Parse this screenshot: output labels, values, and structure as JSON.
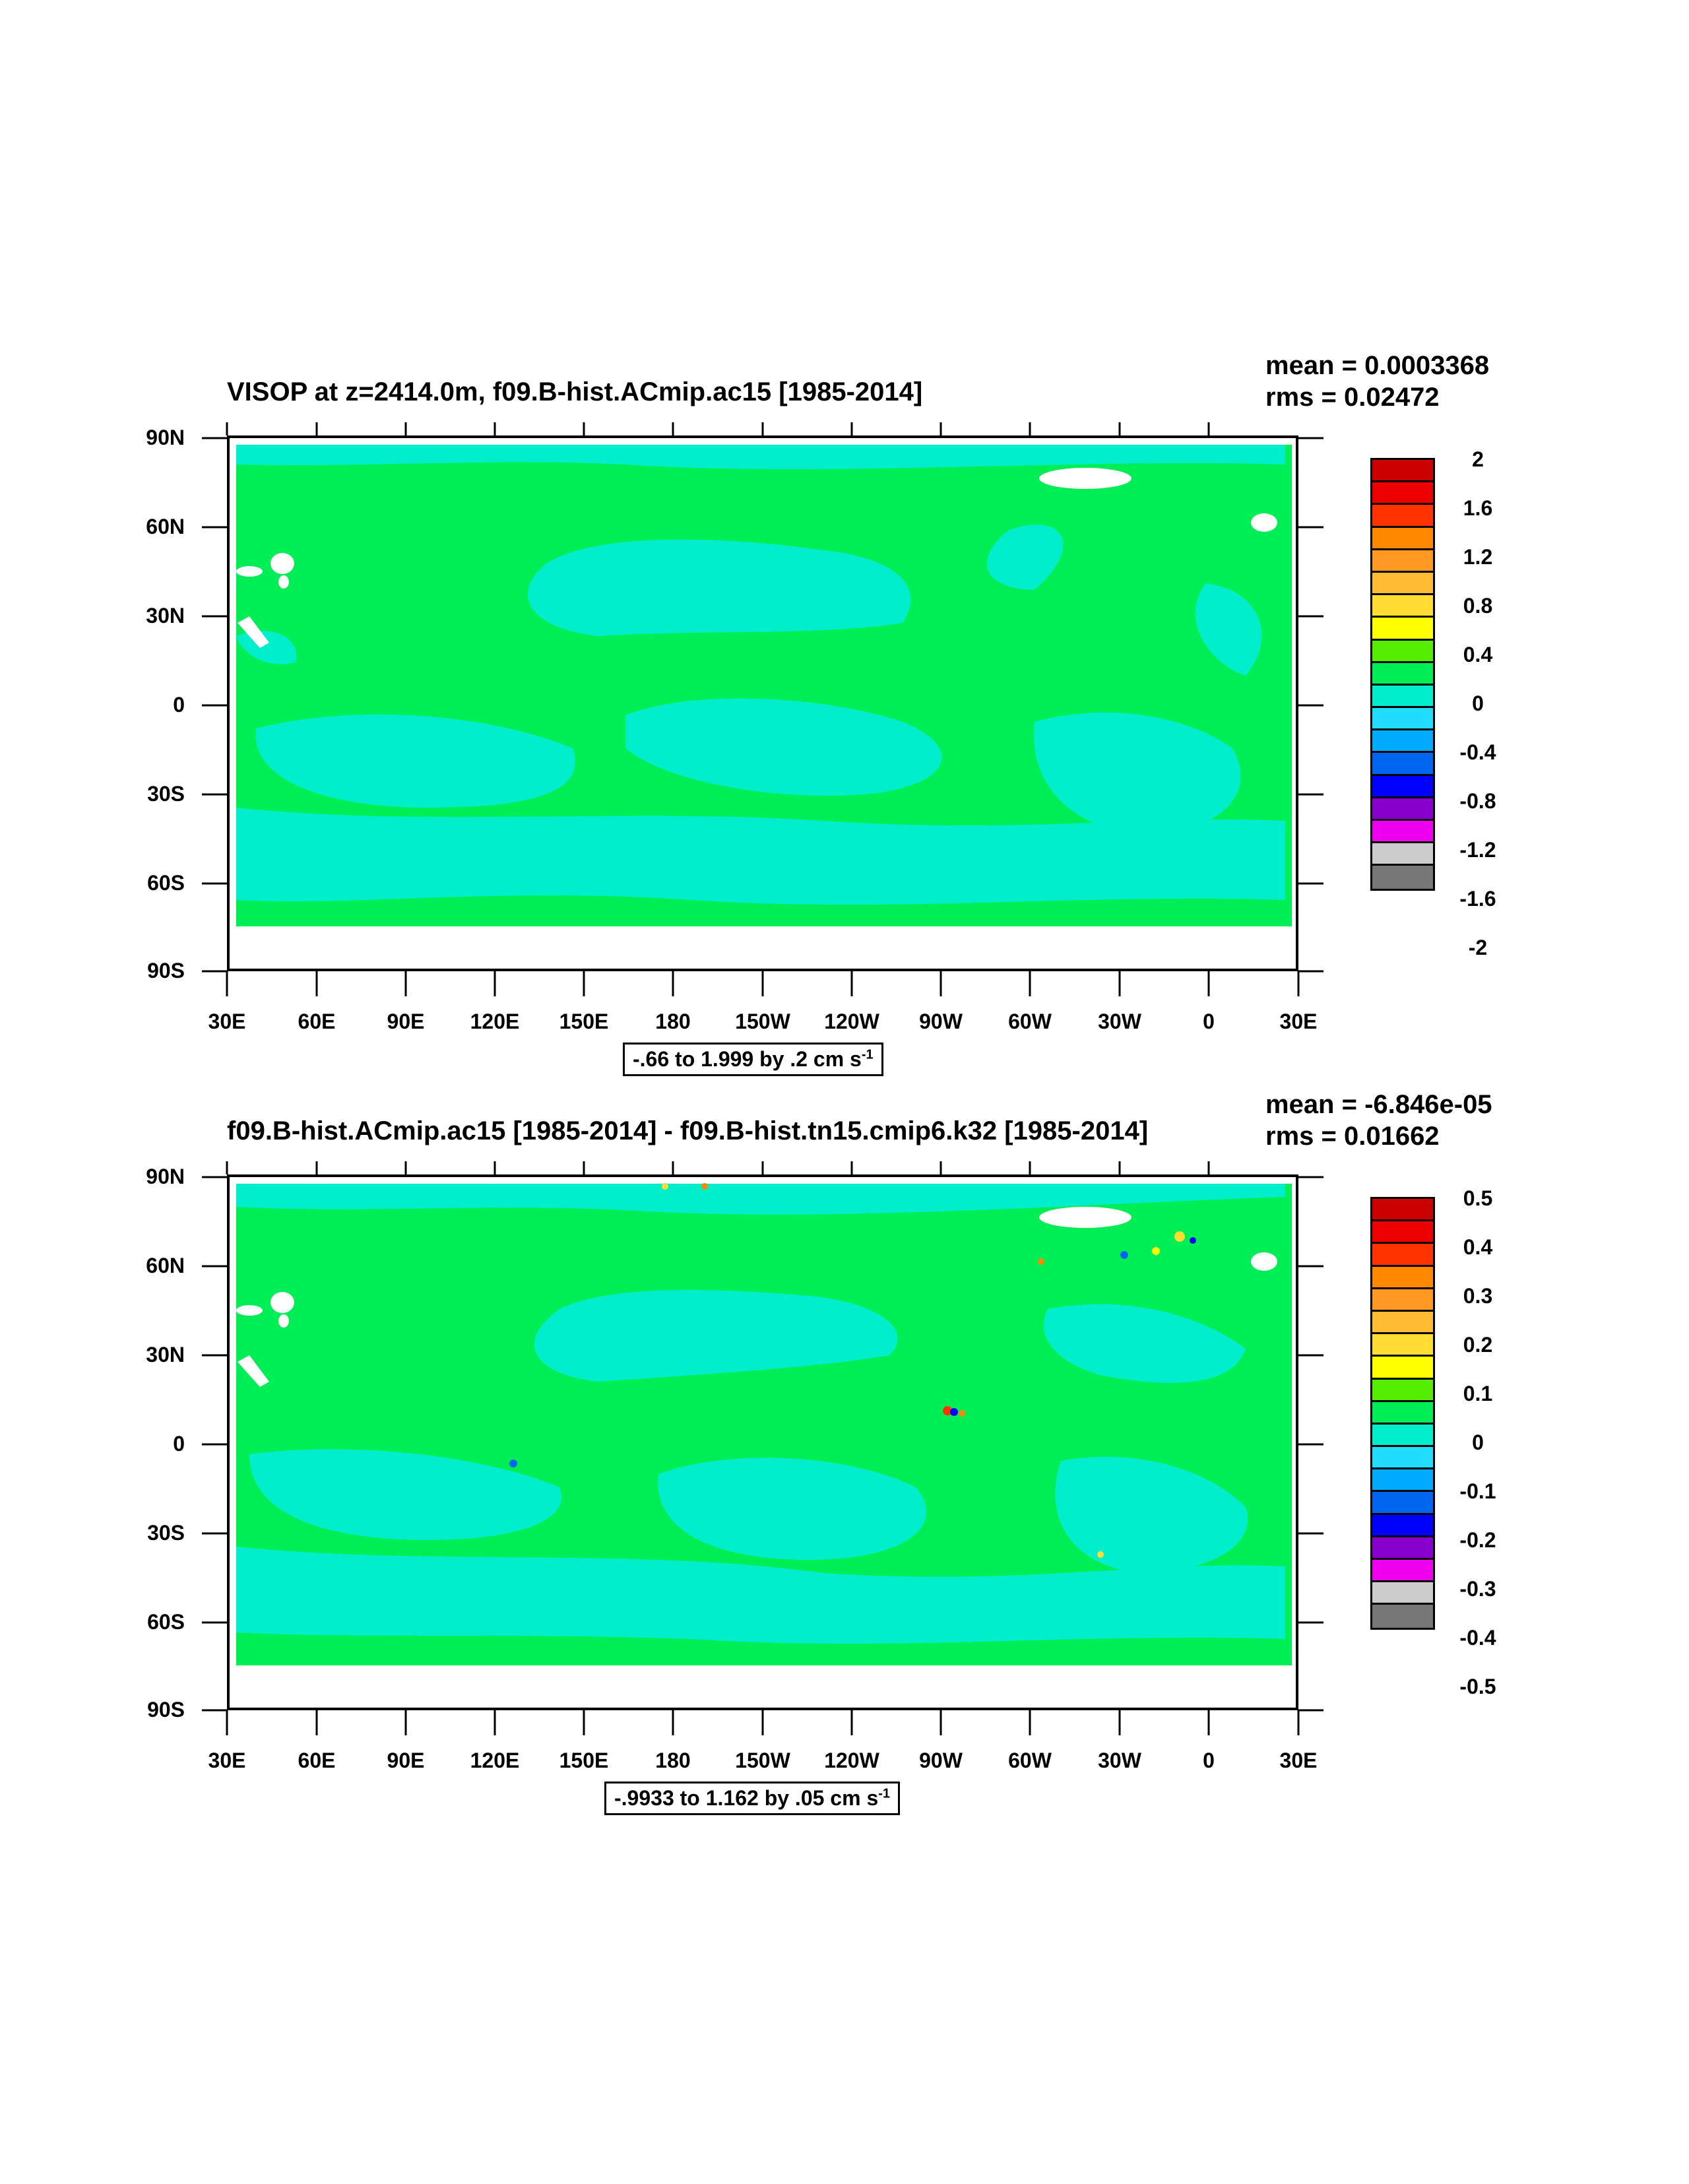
{
  "chart_data": [
    {
      "type": "heatmap",
      "title": "VISOP at z=2414.0m, f09.B-hist.ACmip.ac15 [1985-2014]",
      "mean_label": "mean = 0.0003368",
      "rms_label": "rms = 0.02472",
      "xlabel": "",
      "ylabel": "",
      "x_tick_labels": [
        "30E",
        "60E",
        "90E",
        "120E",
        "150E",
        "180",
        "150W",
        "120W",
        "90W",
        "60W",
        "30W",
        "0",
        "30E"
      ],
      "y_tick_labels": [
        "90N",
        "60N",
        "30N",
        "0",
        "30S",
        "60S",
        "90S"
      ],
      "ylim": [
        -90,
        90
      ],
      "xlim": [
        30,
        390
      ],
      "contour_info": "-.66 to 1.999 by .2 cm s",
      "contour_units_exp": "-1",
      "colorbar_labels": [
        "2",
        "1.6",
        "1.2",
        "0.8",
        "0.4",
        "0",
        "-0.4",
        "-0.8",
        "-1.2",
        "-1.6",
        "-2"
      ],
      "colorbar_levels": [
        2,
        1.6,
        1.2,
        0.8,
        0.4,
        0,
        -0.4,
        -0.8,
        -1.2,
        -1.6,
        -2
      ],
      "colorbar_colors": [
        "#cc0000",
        "#ee0000",
        "#ff3300",
        "#ff8800",
        "#ffaa33",
        "#ffcc33",
        "#ffff00",
        "#55ee00",
        "#00ee55",
        "#00eecc",
        "#22ddff",
        "#00aaff",
        "#0066ee",
        "#0000ff",
        "#8800cc",
        "#ee00ee",
        "#cccccc",
        "#777777"
      ],
      "dominant_fill": "#00ee55",
      "secondary_fill": "#00eecc"
    },
    {
      "type": "heatmap",
      "title": "f09.B-hist.ACmip.ac15 [1985-2014] - f09.B-hist.tn15.cmip6.k32 [1985-2014]",
      "mean_label": "mean = -6.846e-05",
      "rms_label": "rms = 0.01662",
      "xlabel": "",
      "ylabel": "",
      "x_tick_labels": [
        "30E",
        "60E",
        "90E",
        "120E",
        "150E",
        "180",
        "150W",
        "120W",
        "90W",
        "60W",
        "30W",
        "0",
        "30E"
      ],
      "y_tick_labels": [
        "90N",
        "60N",
        "30N",
        "0",
        "30S",
        "60S",
        "90S"
      ],
      "ylim": [
        -90,
        90
      ],
      "xlim": [
        30,
        390
      ],
      "contour_info": "-.9933 to 1.162 by .05 cm s",
      "contour_units_exp": "-1",
      "colorbar_labels": [
        "0.5",
        "0.4",
        "0.3",
        "0.2",
        "0.1",
        "0",
        "-0.1",
        "-0.2",
        "-0.3",
        "-0.4",
        "-0.5"
      ],
      "colorbar_levels": [
        0.5,
        0.4,
        0.3,
        0.2,
        0.1,
        0,
        -0.1,
        -0.2,
        -0.3,
        -0.4,
        -0.5
      ],
      "colorbar_colors": [
        "#cc0000",
        "#ee0000",
        "#ff3300",
        "#ff8800",
        "#ffaa33",
        "#ffcc33",
        "#ffff00",
        "#55ee00",
        "#00ee55",
        "#00eecc",
        "#22ddff",
        "#00aaff",
        "#0066ee",
        "#0000ff",
        "#8800cc",
        "#ee00ee",
        "#cccccc",
        "#777777"
      ],
      "dominant_fill": "#00ee55",
      "secondary_fill": "#00eecc"
    }
  ]
}
